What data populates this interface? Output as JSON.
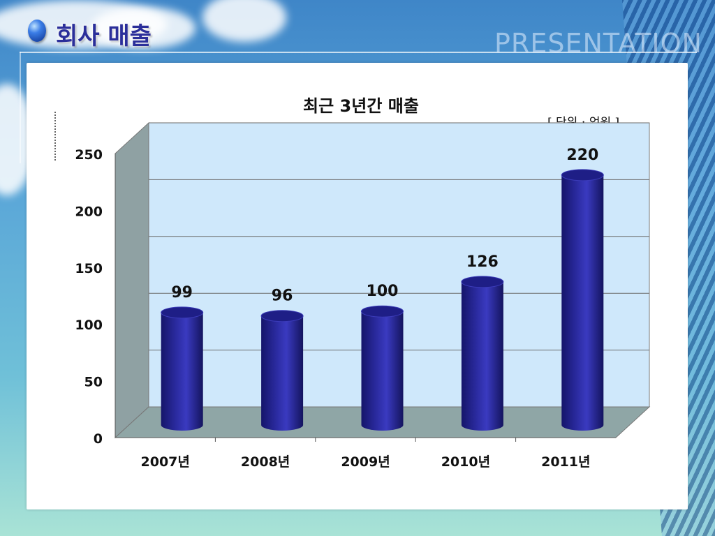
{
  "slide": {
    "title": "회사 매출",
    "watermark": "PRESENTATION"
  },
  "chart_data": {
    "type": "bar",
    "title": "최근 3년간 매출",
    "unit_label": "[ 단위 : 억원 ]",
    "categories": [
      "2007년",
      "2008년",
      "2009년",
      "2010년",
      "2011년"
    ],
    "values": [
      99,
      96,
      100,
      126,
      220
    ],
    "data_labels": [
      "99",
      "96",
      "100",
      "126",
      "220"
    ],
    "ylim": [
      0,
      250
    ],
    "yticks": [
      0,
      50,
      100,
      150,
      200,
      250
    ],
    "grid": true,
    "style": "3d-cylinder",
    "colors": {
      "bar": "#2a2a9e",
      "wall": "#cfe8fb",
      "floor": "#8fa6a6",
      "side_wall": "#8fa1a3"
    }
  }
}
